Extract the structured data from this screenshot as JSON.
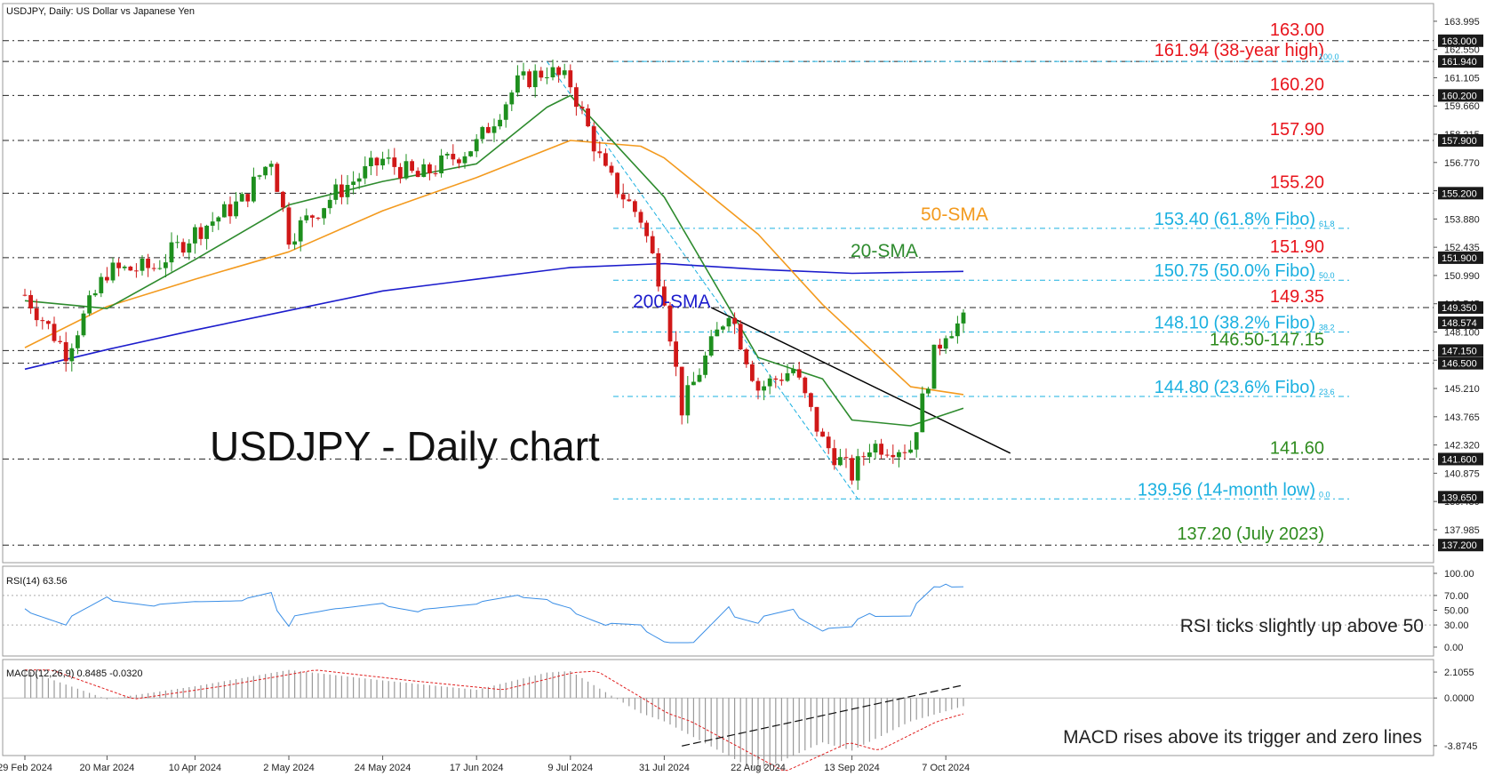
{
  "header": {
    "title": "USDJPY, Daily:  US Dollar vs Japanese Yen"
  },
  "main_title": "USDJPY - Daily chart",
  "colors": {
    "bull_candle": "#1e8f1e",
    "bear_candle": "#d01818",
    "sma20": "#2e8b2e",
    "sma50": "#f39a1e",
    "sma200": "#1c1ccc",
    "fibo": "#1ab0e0",
    "level_red": "#e8141c",
    "level_green": "#2e8b1e",
    "rsi": "#3a8ee6",
    "macd_signal": "#e02020",
    "trendline": "#000000"
  },
  "price_axis": {
    "range": [
      136.3,
      164.9
    ],
    "ticks": [
      "163.995",
      "162.550",
      "161.105",
      "159.660",
      "158.215",
      "156.770",
      "155.325",
      "153.880",
      "152.435",
      "150.990",
      "149.545",
      "148.100",
      "146.655",
      "145.210",
      "143.765",
      "142.320",
      "140.875",
      "139.430",
      "137.985"
    ],
    "tick_values": [
      163.995,
      162.55,
      161.105,
      159.66,
      158.215,
      156.77,
      155.325,
      153.88,
      152.435,
      150.99,
      149.545,
      148.1,
      146.655,
      145.21,
      143.765,
      142.32,
      140.875,
      139.43,
      137.985
    ],
    "highlight_labels": [
      "163.000",
      "161.940",
      "160.200",
      "157.900",
      "155.200",
      "151.900",
      "149.350",
      "148.574",
      "147.150",
      "146.500",
      "141.600",
      "139.650",
      "137.200"
    ]
  },
  "date_axis": {
    "labels": [
      "29 Feb 2024",
      "20 Mar 2024",
      "10 Apr 2024",
      "2 May 2024",
      "24 May 2024",
      "17 Jun 2024",
      "9 Jul 2024",
      "31 Jul 2024",
      "22 Aug 2024",
      "13 Sep 2024",
      "7 Oct 2024"
    ]
  },
  "levels": [
    {
      "price": 163.0,
      "label": "163.00",
      "color": "red"
    },
    {
      "price": 161.94,
      "label": "161.94 (38-year high)",
      "color": "red"
    },
    {
      "price": 160.2,
      "label": "160.20",
      "color": "red"
    },
    {
      "price": 157.9,
      "label": "157.90",
      "color": "red"
    },
    {
      "price": 155.2,
      "label": "155.20",
      "color": "red"
    },
    {
      "price": 151.9,
      "label": "151.90",
      "color": "red"
    },
    {
      "price": 149.35,
      "label": "149.35",
      "color": "red"
    },
    {
      "price": 147.15,
      "label": "146.50-147.15",
      "color": "green"
    },
    {
      "price": 146.5,
      "label": "",
      "color": "green"
    },
    {
      "price": 141.6,
      "label": "141.60",
      "color": "green"
    },
    {
      "price": 137.2,
      "label": "137.20 (July 2023)",
      "color": "green"
    }
  ],
  "fibo_levels": [
    {
      "price": 161.94,
      "label": "",
      "tag": "100.0"
    },
    {
      "price": 153.4,
      "label": "153.40 (61.8% Fibo)",
      "tag": "61.8"
    },
    {
      "price": 150.75,
      "label": "150.75 (50.0% Fibo)",
      "tag": "50.0"
    },
    {
      "price": 148.1,
      "label": "148.10 (38.2% Fibo)",
      "tag": "38.2"
    },
    {
      "price": 144.8,
      "label": "144.80 (23.6% Fibo)",
      "tag": "23.6"
    },
    {
      "price": 139.56,
      "label": "139.56 (14-month low)",
      "tag": "0.0"
    }
  ],
  "sma_labels": {
    "sma50": "50-SMA",
    "sma20": "20-SMA",
    "sma200": "200-SMA"
  },
  "rsi": {
    "header": "RSI(14) 63.56",
    "ticks": [
      "100.00",
      "70.00",
      "50.00",
      "30.00",
      "0.00"
    ],
    "tick_values": [
      100,
      70,
      50,
      30,
      0
    ],
    "annotation": "RSI ticks slightly up above 50"
  },
  "macd": {
    "header": "MACD(12,26,9) 0.8485 -0.0320",
    "ticks": [
      "2.1055",
      "0.0000",
      "-3.8745"
    ],
    "tick_values": [
      2.1055,
      0,
      -3.8745
    ],
    "annotation": "MACD rises above its trigger and zero lines"
  },
  "chart_data": {
    "type": "candlestick",
    "title": "USDJPY, Daily:  US Dollar vs Japanese Yen",
    "x_dates_shown": [
      "29 Feb 2024",
      "20 Mar 2024",
      "10 Apr 2024",
      "2 May 2024",
      "24 May 2024",
      "17 Jun 2024",
      "9 Jul 2024",
      "31 Jul 2024",
      "22 Aug 2024",
      "13 Sep 2024",
      "7 Oct 2024"
    ],
    "close_path": [
      [
        "29 Feb 2024",
        150.0
      ],
      [
        "11 Mar 2024",
        147.1
      ],
      [
        "20 Mar 2024",
        151.2
      ],
      [
        "1 Apr 2024",
        151.4
      ],
      [
        "10 Apr 2024",
        153.2
      ],
      [
        "22 Apr 2024",
        154.8
      ],
      [
        "29 Apr 2024",
        157.0
      ],
      [
        "2 May 2024",
        153.0
      ],
      [
        "14 May 2024",
        155.2
      ],
      [
        "24 May 2024",
        156.9
      ],
      [
        "3 Jun 2024",
        156.0
      ],
      [
        "17 Jun 2024",
        157.7
      ],
      [
        "26 Jun 2024",
        160.8
      ],
      [
        "3 Jul 2024",
        161.5
      ],
      [
        "9 Jul 2024",
        160.8
      ],
      [
        "17 Jul 2024",
        156.2
      ],
      [
        "25 Jul 2024",
        153.9
      ],
      [
        "31 Jul 2024",
        150.0
      ],
      [
        "5 Aug 2024",
        144.2
      ],
      [
        "15 Aug 2024",
        149.3
      ],
      [
        "22 Aug 2024",
        145.2
      ],
      [
        "30 Aug 2024",
        146.2
      ],
      [
        "6 Sep 2024",
        142.5
      ],
      [
        "13 Sep 2024",
        140.8
      ],
      [
        "18 Sep 2024",
        142.3
      ],
      [
        "27 Sep 2024",
        142.2
      ],
      [
        "3 Oct 2024",
        146.9
      ],
      [
        "7 Oct 2024",
        148.2
      ],
      [
        "10 Oct 2024",
        148.6
      ]
    ],
    "sma20_path": [
      [
        "29 Feb 2024",
        149.7
      ],
      [
        "20 Mar 2024",
        149.3
      ],
      [
        "10 Apr 2024",
        151.8
      ],
      [
        "2 May 2024",
        154.6
      ],
      [
        "24 May 2024",
        155.8
      ],
      [
        "17 Jun 2024",
        156.7
      ],
      [
        "3 Jul 2024",
        159.6
      ],
      [
        "9 Jul 2024",
        160.2
      ],
      [
        "31 Jul 2024",
        155.0
      ],
      [
        "22 Aug 2024",
        146.8
      ],
      [
        "6 Sep 2024",
        145.7
      ],
      [
        "13 Sep 2024",
        143.6
      ],
      [
        "27 Sep 2024",
        143.3
      ],
      [
        "10 Oct 2024",
        144.2
      ]
    ],
    "sma50_path": [
      [
        "29 Feb 2024",
        147.3
      ],
      [
        "20 Mar 2024",
        149.4
      ],
      [
        "10 Apr 2024",
        150.8
      ],
      [
        "2 May 2024",
        152.2
      ],
      [
        "24 May 2024",
        154.3
      ],
      [
        "17 Jun 2024",
        156.0
      ],
      [
        "9 Jul 2024",
        157.9
      ],
      [
        "25 Jul 2024",
        157.6
      ],
      [
        "31 Jul 2024",
        157.0
      ],
      [
        "22 Aug 2024",
        153.1
      ],
      [
        "6 Sep 2024",
        149.5
      ],
      [
        "27 Sep 2024",
        145.3
      ],
      [
        "10 Oct 2024",
        144.9
      ]
    ],
    "sma200_path": [
      [
        "29 Feb 2024",
        146.2
      ],
      [
        "20 Mar 2024",
        147.2
      ],
      [
        "10 Apr 2024",
        148.2
      ],
      [
        "2 May 2024",
        149.2
      ],
      [
        "24 May 2024",
        150.2
      ],
      [
        "17 Jun 2024",
        150.8
      ],
      [
        "9 Jul 2024",
        151.4
      ],
      [
        "31 Jul 2024",
        151.6
      ],
      [
        "22 Aug 2024",
        151.3
      ],
      [
        "13 Sep 2024",
        151.1
      ],
      [
        "10 Oct 2024",
        151.2
      ]
    ],
    "ylim": [
      136.3,
      164.9
    ],
    "last_price": 148.574
  }
}
